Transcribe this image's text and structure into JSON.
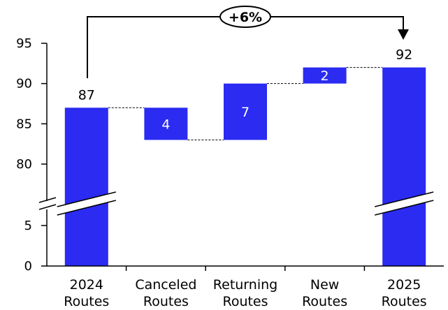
{
  "chart_data": {
    "type": "bar",
    "subtype": "waterfall",
    "categories": [
      {
        "line1": "2024",
        "line2": "Routes"
      },
      {
        "line1": "Canceled",
        "line2": "Routes"
      },
      {
        "line1": "Returning",
        "line2": "Routes"
      },
      {
        "line1": "New",
        "line2": "Routes"
      },
      {
        "line1": "2025",
        "line2": "Routes"
      }
    ],
    "bars": [
      {
        "start": 0,
        "end": 87,
        "label": "87",
        "label_position": "above"
      },
      {
        "start": 87,
        "end": 83,
        "label": "4",
        "label_position": "inside"
      },
      {
        "start": 83,
        "end": 90,
        "label": "7",
        "label_position": "inside"
      },
      {
        "start": 90,
        "end": 92,
        "label": "2",
        "label_position": "inside"
      },
      {
        "start": 0,
        "end": 92,
        "label": "92",
        "label_position": "above"
      }
    ],
    "y_ticks": [
      "0",
      "5",
      "80",
      "85",
      "90",
      "95"
    ],
    "y_axis_break": {
      "lower_max": 5,
      "upper_min": 80
    },
    "ylim": [
      0,
      95
    ],
    "growth_annotation": "+6%",
    "bar_color": "#2b2bf2",
    "grid": false,
    "legend": "none"
  }
}
